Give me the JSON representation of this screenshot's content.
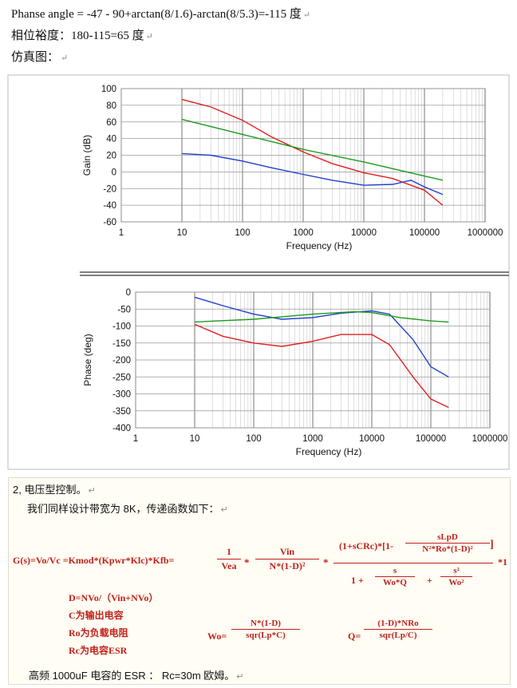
{
  "top": {
    "line1": "Phanse angle = -47 - 90+arctan(8/1.6)-arctan(8/5.3)=-115 度",
    "line2": "相位裕度：180-115=65 度",
    "line3": "仿真图：",
    "return_mark": "↵"
  },
  "gain_chart": {
    "type": "line",
    "ylabel": "Gain (dB)",
    "xlabel": "Frequency (Hz)",
    "x_ticks": [
      "1",
      "10",
      "100",
      "1000",
      "10000",
      "100000",
      "1000000"
    ],
    "y_ticks": [
      "100",
      "80",
      "60",
      "40",
      "20",
      "0",
      "-20",
      "-40",
      "-60"
    ],
    "ylim": [
      -60,
      100
    ],
    "series": [
      {
        "name": "red",
        "color": "#e02020",
        "x": [
          10,
          30,
          100,
          300,
          1000,
          3000,
          10000,
          30000,
          100000,
          200000
        ],
        "y": [
          87,
          78,
          62,
          42,
          24,
          10,
          -1,
          -8,
          -22,
          -40
        ]
      },
      {
        "name": "green",
        "color": "#1f9a1f",
        "x": [
          10,
          100,
          1000,
          10000,
          100000,
          200000
        ],
        "y": [
          63,
          45,
          27,
          12,
          -5,
          -10
        ]
      },
      {
        "name": "blue",
        "color": "#2040d0",
        "x": [
          10,
          30,
          100,
          300,
          1000,
          3000,
          10000,
          30000,
          60000,
          100000,
          200000
        ],
        "y": [
          22,
          20,
          13,
          5,
          -3,
          -10,
          -16,
          -15,
          -10,
          -18,
          -27
        ]
      }
    ]
  },
  "phase_chart": {
    "type": "line",
    "ylabel": "Phase (deg)",
    "xlabel": "Frequency (Hz)",
    "x_ticks": [
      "1",
      "10",
      "100",
      "1000",
      "10000",
      "100000",
      "1000000"
    ],
    "y_ticks": [
      "0",
      "-50",
      "-100",
      "-150",
      "-200",
      "-250",
      "-300",
      "-350",
      "-400"
    ],
    "ylim": [
      -400,
      0
    ],
    "series": [
      {
        "name": "blue",
        "color": "#2040d0",
        "x": [
          10,
          30,
          100,
          300,
          1000,
          3000,
          10000,
          20000,
          50000,
          100000,
          200000
        ],
        "y": [
          -15,
          -40,
          -65,
          -80,
          -75,
          -62,
          -55,
          -65,
          -140,
          -220,
          -250
        ]
      },
      {
        "name": "green",
        "color": "#1f9a1f",
        "x": [
          10,
          100,
          1000,
          5000,
          10000,
          30000,
          100000,
          200000
        ],
        "y": [
          -88,
          -80,
          -65,
          -58,
          -60,
          -75,
          -85,
          -88
        ]
      },
      {
        "name": "red",
        "color": "#e02020",
        "x": [
          10,
          30,
          100,
          300,
          1000,
          3000,
          10000,
          20000,
          50000,
          100000,
          200000
        ],
        "y": [
          -95,
          -130,
          -150,
          -160,
          -145,
          -125,
          -125,
          -155,
          -250,
          -315,
          -340
        ]
      }
    ]
  },
  "bottom": {
    "heading": "2, 电压型控制。",
    "intro": "我们同样设计带宽为 8K，传递函数如下：",
    "eq_lhs": "G(s)=Vo/Vc =Kmod*(Kpwr*Klc)*Kfb=",
    "f1_num": "1",
    "f1_den": "Vea",
    "star": "*",
    "f2_num": "Vin",
    "f2_den": "N*(1-D)²",
    "num_top": "(1+sCRc)*[1-",
    "slpd_num": "sLpD",
    "slpd_den": "N²*Ro*(1-D)²",
    "bracket_close": "]",
    "den_one": "1 +",
    "s_num": "s",
    "s_den": "Wo*Q",
    "plus": "+",
    "s2_num": "s²",
    "s2_den": "Wo²",
    "star1": "*1",
    "def1": "D=NVo/（Vin+NVo）",
    "def2": "C为输出电容",
    "def3": "Ro为负载电阻",
    "def4": "Rc为电容ESR",
    "wo_lhs": "Wo=",
    "wo_num": "N*(1-D)",
    "wo_den": "sqr(Lp*C)",
    "q_lhs": "Q=",
    "q_num": "(1-D)*NRo",
    "q_den": "sqr(Lp/C)",
    "footer": "高频 1000uF 电容的 ESR ： Rc=30m 欧姆。"
  }
}
